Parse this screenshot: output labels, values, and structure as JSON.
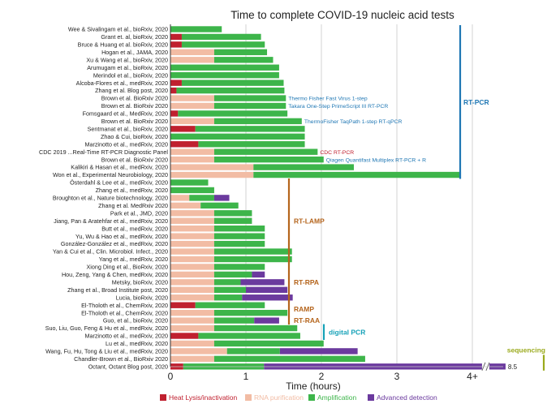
{
  "chart_data": {
    "type": "bar",
    "orientation": "horizontal",
    "stacked": true,
    "title": "Time to complete COVID-19 nucleic acid tests",
    "xlabel": "Time (hours)",
    "xlim": [
      0,
      4.5
    ],
    "x_ticks": [
      {
        "value": 0,
        "label": "0"
      },
      {
        "value": 1,
        "label": "1"
      },
      {
        "value": 2,
        "label": "2"
      },
      {
        "value": 3,
        "label": "3"
      },
      {
        "value": 4,
        "label": "4+"
      }
    ],
    "series": [
      {
        "key": "lysis",
        "name": "Heat Lysis/inactivation",
        "color": "#c0202f"
      },
      {
        "key": "rna",
        "name": "RNA purification",
        "color": "#f2bca4"
      },
      {
        "key": "amp",
        "name": "Amplification",
        "color": "#3db54a"
      },
      {
        "key": "adv",
        "name": "Advanced detection",
        "color": "#6b3a9e"
      }
    ],
    "rows": [
      {
        "label": "Wee & Sivalingam et al., bioRxiv, 2020",
        "lysis": 0,
        "rna": 0,
        "amp": 0.68,
        "adv": 0
      },
      {
        "label": "Grant et. al, bioRxiv, 2020",
        "lysis": 0.15,
        "rna": 0,
        "amp": 1.05,
        "adv": 0
      },
      {
        "label": "Bruce & Huang et al. bioRxiv, 2020",
        "lysis": 0.15,
        "rna": 0,
        "amp": 1.1,
        "adv": 0
      },
      {
        "label": "Hogan et al., JAMA, 2020",
        "lysis": 0,
        "rna": 0.58,
        "amp": 0.7,
        "adv": 0
      },
      {
        "label": "Xu & Wang et al., bioRxiv, 2020",
        "lysis": 0,
        "rna": 0.58,
        "amp": 0.78,
        "adv": 0
      },
      {
        "label": "Arumugam et al., bioRxiv, 2020",
        "lysis": 0,
        "rna": 0,
        "amp": 1.44,
        "adv": 0
      },
      {
        "label": "Merindol et al., bioRxiv, 2020",
        "lysis": 0,
        "rna": 0,
        "amp": 1.44,
        "adv": 0
      },
      {
        "label": "Alcoba-Flores et al., medRxiv, 2020",
        "lysis": 0.15,
        "rna": 0,
        "amp": 1.35,
        "adv": 0
      },
      {
        "label": "Zhang et al. Blog post, 2020",
        "lysis": 0.08,
        "rna": 0,
        "amp": 1.43,
        "adv": 0
      },
      {
        "label": "Brown et al. BioRxiv 2020",
        "lysis": 0,
        "rna": 0.58,
        "amp": 0.95,
        "adv": 0,
        "annotation": "Thermo Fisher Fast Virus 1-step"
      },
      {
        "label": "Brown et al. BioRxiv 2020",
        "lysis": 0,
        "rna": 0.58,
        "amp": 0.95,
        "adv": 0,
        "annotation": "Takara One-Step PrimeScript III RT-PCR"
      },
      {
        "label": "Fomsgaard et al., MedRxiv, 2020",
        "lysis": 0.1,
        "rna": 0,
        "amp": 1.45,
        "adv": 0
      },
      {
        "label": "Brown et al. BioRxiv 2020",
        "lysis": 0,
        "rna": 0.58,
        "amp": 1.16,
        "adv": 0,
        "annotation": "ThermoFisher TaqPath 1-step RT-qPCR"
      },
      {
        "label": "Sentmanat et al., bioRxiv, 2020",
        "lysis": 0.33,
        "rna": 0,
        "amp": 1.45,
        "adv": 0
      },
      {
        "label": "Zhao & Cui, bioRxiv, 2020",
        "lysis": 0,
        "rna": 0,
        "amp": 1.78,
        "adv": 0
      },
      {
        "label": "Marzinotto et al., medRxiv, 2020",
        "lysis": 0.37,
        "rna": 0,
        "amp": 1.41,
        "adv": 0
      },
      {
        "label": "CDC 2019 ...Real-Time RT-PCR Diagnostic Panel",
        "lysis": 0,
        "rna": 0.58,
        "amp": 1.37,
        "adv": 0,
        "annotation": "CDC RT-PCR"
      },
      {
        "label": "Brown et al. BioRxiv 2020",
        "lysis": 0,
        "rna": 0.58,
        "amp": 1.45,
        "adv": 0,
        "annotation": "Qiagen Quantifast Multiplex RT-PCR + R"
      },
      {
        "label": "Kalikiri & Hasan et al., medRxiv, 2020",
        "lysis": 0,
        "rna": 1.1,
        "amp": 1.33,
        "adv": 0
      },
      {
        "label": "Won et al., Experimental Neurobiology, 2020",
        "lysis": 0,
        "rna": 1.1,
        "amp": 2.75,
        "adv": 0
      },
      {
        "label": "Österdahl & Lee et al., medRxiv, 2020",
        "lysis": 0,
        "rna": 0,
        "amp": 0.5,
        "adv": 0
      },
      {
        "label": "Zhang et al., medRxiv, 2020",
        "lysis": 0,
        "rna": 0,
        "amp": 0.58,
        "adv": 0
      },
      {
        "label": "Broughton et al., Nature biotechnology, 2020",
        "lysis": 0,
        "rna": 0.25,
        "amp": 0.33,
        "adv": 0.2
      },
      {
        "label": "Zhang et al. MedRxiv 2020",
        "lysis": 0,
        "rna": 0.4,
        "amp": 0.5,
        "adv": 0
      },
      {
        "label": "Park et al., JMD, 2020",
        "lysis": 0,
        "rna": 0.58,
        "amp": 0.5,
        "adv": 0
      },
      {
        "label": "Jiang, Pan & Aratehfar et al., medRxiv, 2020",
        "lysis": 0,
        "rna": 0.58,
        "amp": 0.5,
        "adv": 0
      },
      {
        "label": "Butt et al., medRxiv, 2020",
        "lysis": 0,
        "rna": 0.58,
        "amp": 0.67,
        "adv": 0
      },
      {
        "label": "Yu, Wu & Hao et al., medRxiv, 2020",
        "lysis": 0,
        "rna": 0.58,
        "amp": 0.67,
        "adv": 0
      },
      {
        "label": "González-González et al., medRxiv, 2020",
        "lysis": 0,
        "rna": 0.58,
        "amp": 0.67,
        "adv": 0
      },
      {
        "label": "Yan & Cui et al., Clin. Microbiol. Infect., 2020",
        "lysis": 0,
        "rna": 0.58,
        "amp": 1.03,
        "adv": 0
      },
      {
        "label": "Yang et al., medRxiv, 2020",
        "lysis": 0,
        "rna": 0.58,
        "amp": 1.03,
        "adv": 0
      },
      {
        "label": "Xiong Ding et al., BioRxiv, 2020",
        "lysis": 0,
        "rna": 0.58,
        "amp": 0.67,
        "adv": 0
      },
      {
        "label": "Hou, Zeng, Yang & Chen, medRxiv, 2020",
        "lysis": 0,
        "rna": 0.58,
        "amp": 0.5,
        "adv": 0.17
      },
      {
        "label": "Metsky, bioRxiv, 2020",
        "lysis": 0,
        "rna": 0.58,
        "amp": 0.35,
        "adv": 0.58
      },
      {
        "label": "Zhang et al., Broad Institute post, 2020",
        "lysis": 0,
        "rna": 0.58,
        "amp": 0.42,
        "adv": 0.55
      },
      {
        "label": "Lucia, bioRxiv, 2020",
        "lysis": 0,
        "rna": 0.58,
        "amp": 0.37,
        "adv": 0.67
      },
      {
        "label": "El-Tholoth et al., ChemRxiv, 2020",
        "lysis": 0.33,
        "rna": 0,
        "amp": 0.92,
        "adv": 0
      },
      {
        "label": "El-Tholoth et al., ChemRxiv, 2020",
        "lysis": 0,
        "rna": 0.58,
        "amp": 0.97,
        "adv": 0
      },
      {
        "label": "Guo, et al., bioRxiv, 2020",
        "lysis": 0,
        "rna": 0.58,
        "amp": 0.53,
        "adv": 0.33
      },
      {
        "label": "Suo, Liu, Guo, Feng & Hu et al., medRxiv, 2020",
        "lysis": 0,
        "rna": 0.58,
        "amp": 1.1,
        "adv": 0
      },
      {
        "label": "Marzinotto et al., medRxiv, 2020",
        "lysis": 0.37,
        "rna": 0,
        "amp": 1.35,
        "adv": 0
      },
      {
        "label": "Lu et al., medRxiv, 2020",
        "lysis": 0,
        "rna": 0.58,
        "amp": 1.45,
        "adv": 0
      },
      {
        "label": "Wang, Fu, Hu, Tong & Liu et al., medRxiv, 2020",
        "lysis": 0,
        "rna": 0.75,
        "amp": 0.7,
        "adv": 1.03
      },
      {
        "label": "Chandler-Brown et al., BioRxiv 2020",
        "lysis": 0,
        "rna": 0.58,
        "amp": 2.0,
        "adv": 0
      },
      {
        "label": "Octant, Octant Blog post, 2020",
        "lysis": 0.17,
        "rna": 0,
        "amp": 1.07,
        "adv": 3.2,
        "broken_axis_value": "8.5"
      }
    ],
    "groups": [
      {
        "name": "RT-PCR",
        "color": "#1f77b4",
        "first_row": 0,
        "last_row": 19
      },
      {
        "name": "RT-LAMP",
        "color": "#b5651d",
        "first_row": 20,
        "last_row": 30
      },
      {
        "name": "RT-RPA",
        "color": "#b5651d",
        "first_row": 31,
        "last_row": 35
      },
      {
        "name": "RAMP",
        "color": "#b5651d",
        "first_row": 36,
        "last_row": 37
      },
      {
        "name": "RT-RAA",
        "color": "#b5651d",
        "first_row": 38,
        "last_row": 38
      },
      {
        "name": "digital PCR",
        "color": "#17a2b8",
        "first_row": 39,
        "last_row": 40
      },
      {
        "name": "sequencing",
        "color": "#9aaa1c",
        "first_row": 43,
        "last_row": 44
      }
    ]
  }
}
